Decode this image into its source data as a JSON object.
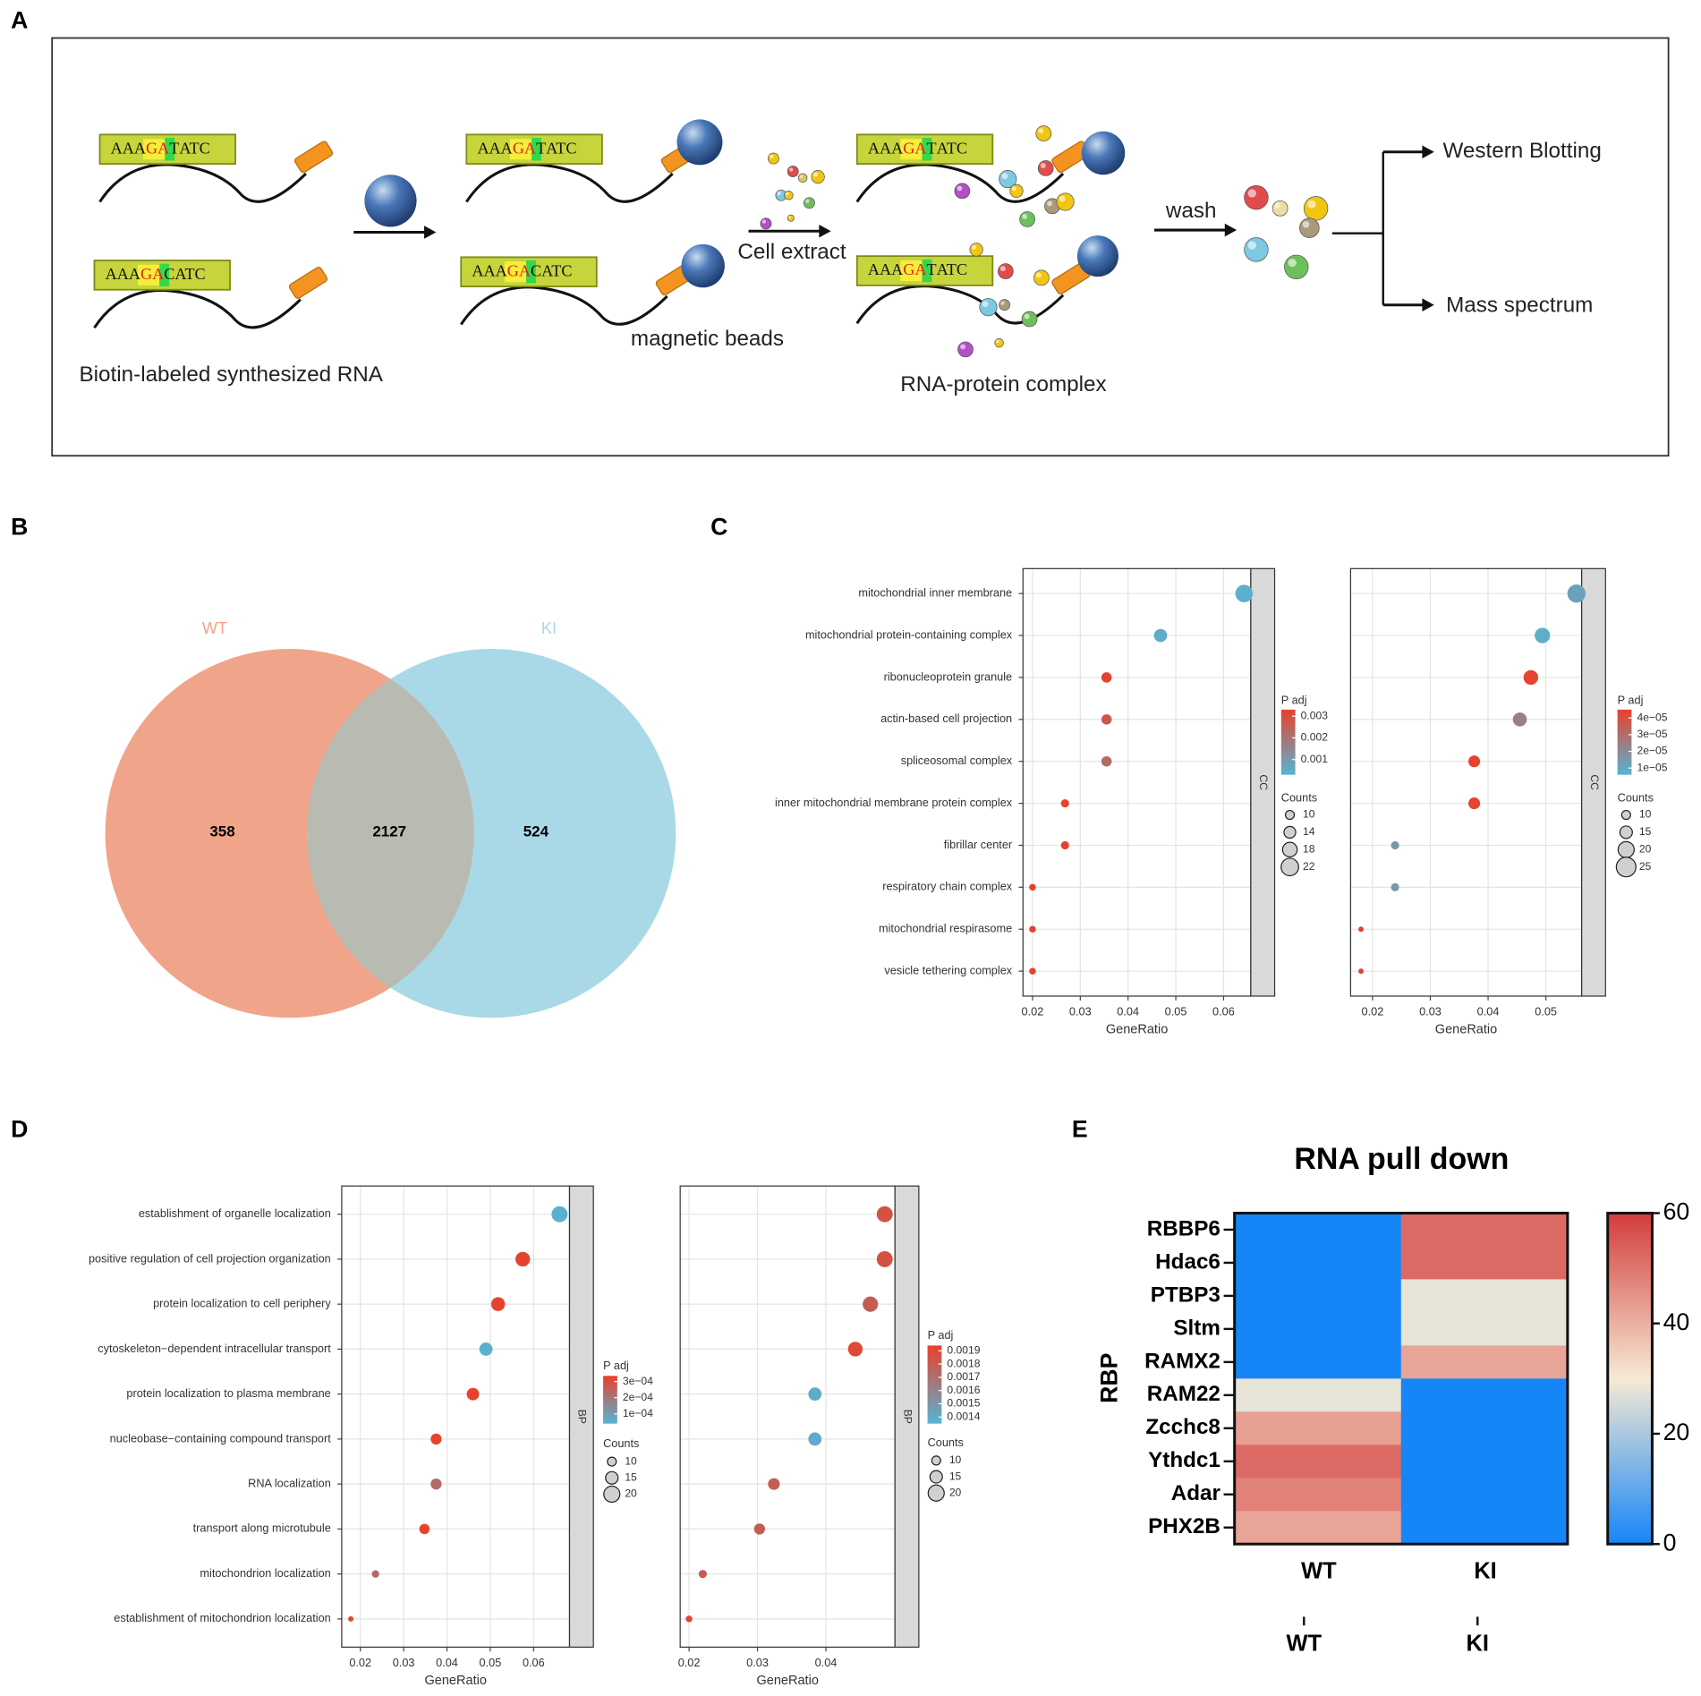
{
  "panel_labels": [
    "A",
    "B",
    "C",
    "D",
    "E"
  ],
  "panel_a": {
    "sequences": [
      [
        "AAA",
        "GA",
        "T",
        "ATC"
      ],
      [
        "AAA",
        "GA",
        "C",
        "ATC"
      ]
    ],
    "labels": {
      "rna": "Biotin-labeled synthesized RNA",
      "beads": "magnetic beads",
      "extract": "Cell extract",
      "complex": "RNA-protein complex",
      "wash": "wash",
      "western": "Western Blotting",
      "mass": "Mass spectrum"
    }
  },
  "chart_data": [
    {
      "type": "venn",
      "sets": [
        {
          "name": "WT",
          "color": "#f0a58b"
        },
        {
          "name": "KI",
          "color": "#a9d9e6"
        }
      ],
      "values": [
        358,
        2127,
        524
      ]
    },
    {
      "type": "dot",
      "facet": "CC",
      "x_label": "GeneRatio",
      "categories": [
        "mitochondrial inner membrane",
        "mitochondrial protein-containing complex",
        "ribonucleoprotein granule",
        "actin-based cell projection",
        "spliceosomal complex",
        "inner mitochondrial membrane protein complex",
        "fibrillar center",
        "respiratory chain complex",
        "mitochondrial respirasome",
        "vesicle tethering complex"
      ],
      "values": [
        0.0643,
        0.0468,
        0.0355,
        0.0355,
        0.0355,
        0.0268,
        0.0268,
        0.02,
        0.02,
        0.02
      ],
      "sizes": [
        22,
        16,
        12,
        12,
        12,
        9,
        9,
        7,
        7,
        7
      ],
      "color_values": [
        0.0004,
        0.0005,
        0.0033,
        0.0027,
        0.0022,
        0.0033,
        0.0033,
        0.0033,
        0.0033,
        0.0033
      ],
      "xlim": [
        0.018,
        0.0657
      ],
      "xticks": [
        0.02,
        0.03,
        0.04,
        0.05,
        0.06
      ],
      "color_title": "P adj",
      "color_lim": [
        0.0003,
        0.0033
      ],
      "color_ticks": [
        0.001,
        0.002,
        0.003
      ],
      "colors": [
        "#56b4d3",
        "#e8412c"
      ],
      "size_title": "Counts",
      "size_ticks": [
        10,
        14,
        18,
        22
      ]
    },
    {
      "type": "dot",
      "facet": "CC",
      "x_label": "GeneRatio",
      "values": [
        0.0553,
        0.0494,
        0.0474,
        0.0455,
        0.0376,
        0.0376,
        0.0239,
        0.0239,
        0.018,
        0.018
      ],
      "sizes": [
        23,
        19,
        18,
        17,
        14,
        14,
        9,
        9,
        5,
        5
      ],
      "color_values": [
        1.2e-05,
        8e-06,
        4.4e-05,
        2.5e-05,
        4.4e-05,
        4.4e-05,
        1.5e-05,
        1.5e-05,
        4.4e-05,
        4.4e-05
      ],
      "xlim": [
        0.0162,
        0.0562
      ],
      "xticks": [
        0.02,
        0.03,
        0.04,
        0.05
      ],
      "color_title": "P adj",
      "color_lim": [
        6e-06,
        4.5e-05
      ],
      "color_ticks": [
        {
          "value": 1e-05,
          "label": "1e−05"
        },
        {
          "value": 2e-05,
          "label": "2e−05"
        },
        {
          "value": 3e-05,
          "label": "3e−05"
        },
        {
          "value": 4e-05,
          "label": "4e−05"
        }
      ],
      "colors": [
        "#56b4d3",
        "#e8412c"
      ],
      "size_title": "Counts",
      "size_ticks": [
        10,
        15,
        20,
        25
      ]
    },
    {
      "type": "dot",
      "facet": "BP",
      "x_label": "GeneRatio",
      "categories": [
        "establishment of organelle localization",
        "positive regulation of cell projection organization",
        "protein localization to cell periphery",
        "cytoskeleton−dependent intracellular transport",
        "protein localization to plasma membrane",
        "nucleobase−containing compound transport",
        "RNA localization",
        "transport along microtubule",
        "mitochondrion localization",
        "establishment of mitochondrion localization"
      ],
      "values": [
        0.066,
        0.0575,
        0.0518,
        0.049,
        0.046,
        0.0375,
        0.0375,
        0.0348,
        0.0235,
        0.0178
      ],
      "sizes": [
        20,
        18,
        17,
        16,
        15,
        13,
        13,
        12,
        8,
        5
      ],
      "color_values": [
        5e-05,
        0.00033,
        0.00033,
        5e-05,
        0.00033,
        0.00033,
        0.00023,
        0.00033,
        0.00023,
        0.00033
      ],
      "xlim": [
        0.0157,
        0.0683
      ],
      "xticks": [
        0.02,
        0.03,
        0.04,
        0.05,
        0.06
      ],
      "color_title": "P adj",
      "color_lim": [
        4e-05,
        0.000335
      ],
      "color_ticks": [
        {
          "value": 0.0001,
          "label": "1e−04"
        },
        {
          "value": 0.0002,
          "label": "2e−04"
        },
        {
          "value": 0.0003,
          "label": "3e−04"
        }
      ],
      "colors": [
        "#56b4d3",
        "#e8412c"
      ],
      "size_title": "Counts",
      "size_ticks": [
        10,
        15,
        20
      ]
    },
    {
      "type": "dot",
      "facet": "BP",
      "x_label": "GeneRatio",
      "values": [
        0.0486,
        0.0486,
        0.0465,
        0.0443,
        0.0384,
        0.0384,
        0.0324,
        0.0303,
        0.022,
        0.02
      ],
      "sizes": [
        20,
        20,
        19,
        18,
        16,
        16,
        14,
        13,
        9,
        7
      ],
      "color_values": [
        0.00185,
        0.00185,
        0.0018,
        0.0019,
        0.0014,
        0.0014,
        0.0018,
        0.0018,
        0.0018,
        0.0019
      ],
      "xlim": [
        0.0187,
        0.0501
      ],
      "xticks": [
        0.02,
        0.03,
        0.04
      ],
      "color_title": "P adj",
      "color_lim": [
        0.00135,
        0.00194
      ],
      "color_ticks": [
        0.0014,
        0.0015,
        0.0016,
        0.0017,
        0.0018,
        0.0019
      ],
      "colors": [
        "#56b4d3",
        "#e8412c"
      ],
      "size_title": "Counts",
      "size_ticks": [
        10,
        15,
        20
      ]
    },
    {
      "type": "heatmap",
      "title": "RNA pull down",
      "y_label": "RBP",
      "rows": [
        "RBBP6",
        "Hdac6",
        "PTBP3",
        "Sltm",
        "RAMX2",
        "RAM22",
        "Zcchc8",
        "Ythdc1",
        "Adar",
        "PHX2B"
      ],
      "columns": [
        "WT",
        "KI"
      ],
      "values": [
        [
          0,
          52
        ],
        [
          0,
          52
        ],
        [
          0,
          28
        ],
        [
          0,
          28
        ],
        [
          0,
          42
        ],
        [
          28,
          0
        ],
        [
          43,
          0
        ],
        [
          52,
          0
        ],
        [
          48,
          0
        ],
        [
          42,
          0
        ]
      ],
      "clim": [
        0,
        60
      ],
      "cticks": [
        0,
        20,
        40,
        60
      ],
      "colormap": [
        "#1685f7",
        "#f6ead5",
        "#d33c3b"
      ]
    }
  ]
}
